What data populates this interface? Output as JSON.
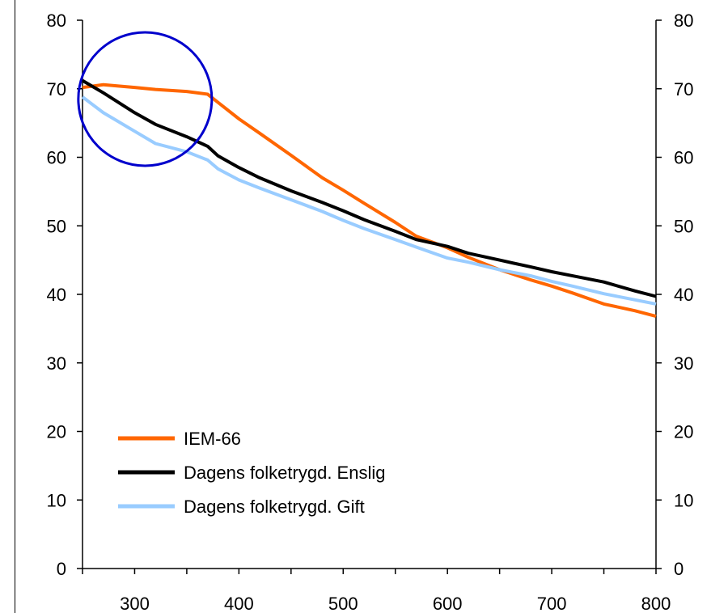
{
  "chart_data": {
    "type": "line",
    "title": "",
    "xlabel": "",
    "ylabel": "",
    "xlim": [
      250,
      800
    ],
    "ylim": [
      0,
      80
    ],
    "x_ticks_labeled": [
      300,
      400,
      500,
      600,
      700,
      800
    ],
    "x_ticks_minor": [
      250,
      350,
      450,
      550,
      650,
      750
    ],
    "y_ticks": [
      0,
      10,
      20,
      30,
      40,
      50,
      60,
      70,
      80
    ],
    "secondary_y_axis": true,
    "grid": false,
    "legend_position": "lower-left",
    "series": [
      {
        "name": "IEM-66",
        "color": "#ff6600",
        "x": [
          250,
          270,
          300,
          320,
          350,
          370,
          380,
          400,
          420,
          450,
          480,
          500,
          520,
          550,
          570,
          600,
          620,
          650,
          680,
          700,
          720,
          750,
          780,
          800
        ],
        "y": [
          70.2,
          70.6,
          70.2,
          69.9,
          69.6,
          69.2,
          68.0,
          65.6,
          63.5,
          60.3,
          57.0,
          55.2,
          53.3,
          50.5,
          48.5,
          46.8,
          45.4,
          43.6,
          42.1,
          41.2,
          40.2,
          38.6,
          37.6,
          36.8
        ]
      },
      {
        "name": "Dagens folketrygd. Enslig",
        "color": "#000000",
        "x": [
          250,
          270,
          300,
          320,
          350,
          370,
          380,
          400,
          420,
          450,
          480,
          500,
          520,
          550,
          570,
          600,
          620,
          650,
          680,
          700,
          720,
          750,
          780,
          800
        ],
        "y": [
          71.2,
          69.4,
          66.5,
          64.8,
          63.0,
          61.6,
          60.2,
          58.5,
          57.0,
          55.1,
          53.4,
          52.2,
          50.9,
          49.2,
          48.0,
          47.0,
          46.0,
          45.0,
          44.0,
          43.3,
          42.7,
          41.8,
          40.5,
          39.7
        ]
      },
      {
        "name": "Dagens folketrygd. Gift",
        "color": "#99ccff",
        "x": [
          250,
          270,
          300,
          320,
          350,
          370,
          380,
          400,
          420,
          450,
          480,
          500,
          520,
          550,
          570,
          600,
          620,
          650,
          680,
          700,
          720,
          750,
          780,
          800
        ],
        "y": [
          68.8,
          66.5,
          63.8,
          62.0,
          60.8,
          59.6,
          58.3,
          56.7,
          55.5,
          53.8,
          52.1,
          50.8,
          49.6,
          48.0,
          46.9,
          45.3,
          44.7,
          43.6,
          42.7,
          41.9,
          41.2,
          40.1,
          39.2,
          38.6
        ]
      }
    ],
    "annotation": {
      "shape": "circle",
      "color": "#0000cc",
      "center_x": 310,
      "center_y": 68.5,
      "radius_x_units": 64
    }
  }
}
